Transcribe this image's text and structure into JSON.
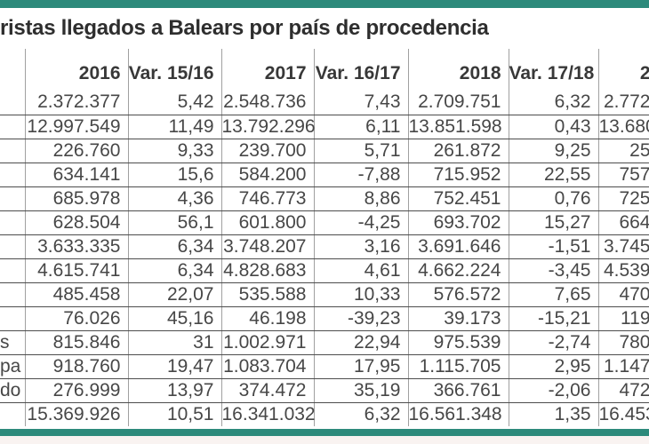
{
  "title": "ristas llegados a Balears por país de procedencia",
  "colors": {
    "accent_bar": "#2d8a7b",
    "row_line": "#4d4d4d",
    "column_line": "#a0a0a0"
  },
  "chart_data": {
    "type": "table",
    "title": "ristas llegados a Balears por país de procedencia",
    "columns": [
      "2016",
      "Var. 15/16",
      "2017",
      "Var. 16/17",
      "2018",
      "Var. 17/18",
      "2"
    ],
    "rows": [
      {
        "country": "",
        "y2016": "2.372.377",
        "var1516": "5,42",
        "y2017": "2.548.736",
        "var1617": "7,43",
        "y2018": "2.709.751",
        "var1718": "6,32",
        "y2019": "2.772"
      },
      {
        "country": "",
        "y2016": "12.997.549",
        "var1516": "11,49",
        "y2017": "13.792.296",
        "var1617": "6,11",
        "y2018": "13.851.598",
        "var1718": "0,43",
        "y2019": "13.680"
      },
      {
        "country": "",
        "y2016": "226.760",
        "var1516": "9,33",
        "y2017": "239.700",
        "var1617": "5,71",
        "y2018": "261.872",
        "var1718": "9,25",
        "y2019": "25"
      },
      {
        "country": "",
        "y2016": "634.141",
        "var1516": "15,6",
        "y2017": "584.200",
        "var1617": "-7,88",
        "y2018": "715.952",
        "var1718": "22,55",
        "y2019": "757"
      },
      {
        "country": "",
        "y2016": "685.978",
        "var1516": "4,36",
        "y2017": "746.773",
        "var1617": "8,86",
        "y2018": "752.451",
        "var1718": "0,76",
        "y2019": "725"
      },
      {
        "country": "",
        "y2016": "628.504",
        "var1516": "56,1",
        "y2017": "601.800",
        "var1617": "-4,25",
        "y2018": "693.702",
        "var1718": "15,27",
        "y2019": "664"
      },
      {
        "country": "",
        "y2016": "3.633.335",
        "var1516": "6,34",
        "y2017": "3.748.207",
        "var1617": "3,16",
        "y2018": "3.691.646",
        "var1718": "-1,51",
        "y2019": "3.745"
      },
      {
        "country": "",
        "y2016": "4.615.741",
        "var1516": "6,34",
        "y2017": "4.828.683",
        "var1617": "4,61",
        "y2018": "4.662.224",
        "var1718": "-3,45",
        "y2019": "4.539"
      },
      {
        "country": "",
        "y2016": "485.458",
        "var1516": "22,07",
        "y2017": "535.588",
        "var1617": "10,33",
        "y2018": "576.572",
        "var1718": "7,65",
        "y2019": "470"
      },
      {
        "country": "",
        "y2016": "76.026",
        "var1516": "45,16",
        "y2017": "46.198",
        "var1617": "-39,23",
        "y2018": "39.173",
        "var1718": "-15,21",
        "y2019": "119"
      },
      {
        "country": "s",
        "y2016": "815.846",
        "var1516": "31",
        "y2017": "1.002.971",
        "var1617": "22,94",
        "y2018": "975.539",
        "var1718": "-2,74",
        "y2019": "780"
      },
      {
        "country": "pa",
        "y2016": "918.760",
        "var1516": "19,47",
        "y2017": "1.083.704",
        "var1617": "17,95",
        "y2018": "1.115.705",
        "var1718": "2,95",
        "y2019": "1.147"
      },
      {
        "country": "do",
        "y2016": "276.999",
        "var1516": "13,97",
        "y2017": "374.472",
        "var1617": "35,19",
        "y2018": "366.761",
        "var1718": "-2,06",
        "y2019": "472"
      },
      {
        "country": "",
        "y2016": "15.369.926",
        "var1516": "10,51",
        "y2017": "16.341.032",
        "var1617": "6,32",
        "y2018": "16.561.348",
        "var1718": "1,35",
        "y2019": "16.453"
      }
    ]
  }
}
